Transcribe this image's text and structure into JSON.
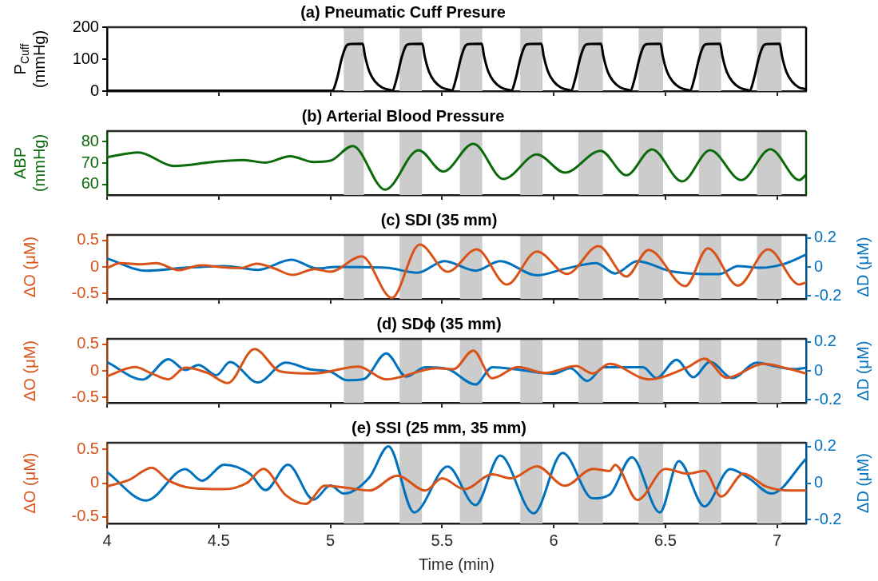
{
  "chart_data": [
    {
      "type": "line",
      "title": "(a) Pneumatic Cuff Presure",
      "ylabel": "P$_{Cuff}$ (mmHg)",
      "xlim": [
        4,
        7.13
      ],
      "xticks": [
        4,
        4.5,
        5,
        5.5,
        6,
        6.5,
        7
      ],
      "ylim": [
        0,
        200
      ],
      "yticks": [
        0,
        100,
        200
      ],
      "grid": false,
      "legend": false,
      "marker": "none",
      "tick_labels": "y",
      "bands": [
        {
          "axis": "x",
          "from": 5.06,
          "to": 5.15,
          "color": "#cccccc"
        },
        {
          "axis": "x",
          "from": 5.31,
          "to": 5.41,
          "color": "#cccccc"
        },
        {
          "axis": "x",
          "from": 5.58,
          "to": 5.68,
          "color": "#cccccc"
        },
        {
          "axis": "x",
          "from": 5.85,
          "to": 5.95,
          "color": "#cccccc"
        },
        {
          "axis": "x",
          "from": 6.11,
          "to": 6.22,
          "color": "#cccccc"
        },
        {
          "axis": "x",
          "from": 6.38,
          "to": 6.49,
          "color": "#cccccc"
        },
        {
          "axis": "x",
          "from": 6.65,
          "to": 6.75,
          "color": "#cccccc"
        },
        {
          "axis": "x",
          "from": 6.91,
          "to": 7.02,
          "color": "#cccccc"
        }
      ],
      "series": [
        {
          "color": "#000000",
          "x": [
            4,
            5.0,
            5.01,
            5.03,
            5.05,
            5.07,
            5.085,
            5.145,
            5.155,
            5.175,
            5.2,
            5.23,
            5.27,
            5.277,
            5.297,
            5.317,
            5.337,
            5.352,
            5.412,
            5.422,
            5.442,
            5.467,
            5.497,
            5.537,
            5.543,
            5.563,
            5.583,
            5.603,
            5.618,
            5.678,
            5.688,
            5.708,
            5.733,
            5.763,
            5.803,
            5.81,
            5.83,
            5.85,
            5.87,
            5.885,
            5.945,
            5.955,
            5.975,
            6.0,
            6.03,
            6.07,
            6.077,
            6.097,
            6.117,
            6.137,
            6.152,
            6.212,
            6.222,
            6.242,
            6.267,
            6.297,
            6.337,
            6.343,
            6.363,
            6.383,
            6.403,
            6.418,
            6.478,
            6.488,
            6.508,
            6.533,
            6.563,
            6.603,
            6.61,
            6.63,
            6.65,
            6.67,
            6.685,
            6.745,
            6.755,
            6.775,
            6.8,
            6.83,
            6.87,
            6.877,
            6.897,
            6.917,
            6.937,
            6.952,
            7.012,
            7.022,
            7.042,
            7.067,
            7.097,
            7.13
          ],
          "values": [
            1,
            1,
            2,
            40,
            100,
            140,
            147,
            148,
            110,
            60,
            30,
            12,
            3,
            2,
            40,
            100,
            140,
            147,
            148,
            110,
            60,
            30,
            12,
            3,
            2,
            40,
            100,
            140,
            147,
            148,
            110,
            60,
            30,
            12,
            3,
            2,
            40,
            100,
            140,
            147,
            148,
            110,
            60,
            30,
            12,
            3,
            2,
            40,
            100,
            140,
            147,
            148,
            110,
            60,
            30,
            12,
            3,
            2,
            40,
            100,
            140,
            147,
            148,
            110,
            60,
            30,
            12,
            3,
            2,
            40,
            100,
            140,
            147,
            148,
            110,
            60,
            30,
            12,
            3,
            2,
            40,
            100,
            140,
            147,
            148,
            110,
            60,
            30,
            12,
            6
          ]
        }
      ]
    },
    {
      "type": "line",
      "title": "(b) Arterial Blood Pressure",
      "ylabel": "ABP (mmHg)",
      "xlim": [
        4,
        7.13
      ],
      "xticks": [
        4,
        4.5,
        5,
        5.5,
        6,
        6.5,
        7
      ],
      "ylim": [
        55,
        85
      ],
      "yticks": [
        60,
        70,
        80
      ],
      "grid": false,
      "legend": false,
      "marker": "none",
      "tick_labels": "y",
      "bands": [
        {
          "axis": "x",
          "from": 5.06,
          "to": 5.15,
          "color": "#cccccc"
        },
        {
          "axis": "x",
          "from": 5.31,
          "to": 5.41,
          "color": "#cccccc"
        },
        {
          "axis": "x",
          "from": 5.58,
          "to": 5.68,
          "color": "#cccccc"
        },
        {
          "axis": "x",
          "from": 5.85,
          "to": 5.95,
          "color": "#cccccc"
        },
        {
          "axis": "x",
          "from": 6.11,
          "to": 6.22,
          "color": "#cccccc"
        },
        {
          "axis": "x",
          "from": 6.38,
          "to": 6.49,
          "color": "#cccccc"
        },
        {
          "axis": "x",
          "from": 6.65,
          "to": 6.75,
          "color": "#cccccc"
        },
        {
          "axis": "x",
          "from": 6.91,
          "to": 7.02,
          "color": "#cccccc"
        }
      ],
      "series": [
        {
          "color": "#0b6b0b",
          "x": [
            4,
            4.14,
            4.3,
            4.475,
            4.61,
            4.71,
            4.82,
            4.925,
            5.0,
            5.1,
            5.245,
            5.395,
            5.505,
            5.64,
            5.775,
            5.925,
            6.05,
            6.21,
            6.325,
            6.44,
            6.575,
            6.7,
            6.84,
            6.97,
            7.1,
            7.13
          ],
          "values": [
            72.7,
            75,
            68.6,
            70.5,
            71.4,
            70.2,
            73.2,
            70.5,
            71.1,
            78,
            57.5,
            76,
            66,
            79,
            62.5,
            74,
            65.5,
            75.7,
            64.3,
            76.4,
            61.4,
            76,
            62,
            76.5,
            62,
            64.5
          ]
        }
      ]
    },
    {
      "type": "line",
      "title": "(c) SDI (35 mm)",
      "ylabel": "ΔO (μM)",
      "y2label": "ΔD (μM)",
      "xlim": [
        4,
        7.13
      ],
      "xticks": [
        4,
        4.5,
        5,
        5.5,
        6,
        6.5,
        7
      ],
      "ylim": [
        -0.6,
        0.6
      ],
      "yticks": [
        -0.5,
        0,
        0.5
      ],
      "y2lim": [
        -0.22,
        0.22
      ],
      "y2ticks": [
        -0.2,
        0,
        0.2
      ],
      "grid": false,
      "legend": false,
      "marker": "none",
      "tick_labels": "y",
      "bands": [
        {
          "axis": "x",
          "from": 5.06,
          "to": 5.15,
          "color": "#cccccc"
        },
        {
          "axis": "x",
          "from": 5.31,
          "to": 5.41,
          "color": "#cccccc"
        },
        {
          "axis": "x",
          "from": 5.58,
          "to": 5.68,
          "color": "#cccccc"
        },
        {
          "axis": "x",
          "from": 5.85,
          "to": 5.95,
          "color": "#cccccc"
        },
        {
          "axis": "x",
          "from": 6.11,
          "to": 6.22,
          "color": "#cccccc"
        },
        {
          "axis": "x",
          "from": 6.38,
          "to": 6.49,
          "color": "#cccccc"
        },
        {
          "axis": "x",
          "from": 6.65,
          "to": 6.75,
          "color": "#cccccc"
        },
        {
          "axis": "x",
          "from": 6.91,
          "to": 7.02,
          "color": "#cccccc"
        }
      ],
      "series": [
        {
          "color": "#d95319",
          "x": [
            4,
            4.06,
            4.15,
            4.22,
            4.32,
            4.42,
            4.5,
            4.6,
            4.67,
            4.75,
            4.83,
            4.93,
            5.0,
            5.14,
            5.275,
            5.4,
            5.525,
            5.655,
            5.79,
            5.925,
            6.06,
            6.2,
            6.325,
            6.425,
            6.59,
            6.69,
            6.825,
            6.96,
            7.1,
            7.13
          ],
          "values": [
            -0.02,
            0.07,
            0.05,
            0.07,
            -0.06,
            0.03,
            0,
            -0.02,
            0.06,
            -0.03,
            -0.15,
            -0.04,
            -0.09,
            0.2,
            -0.58,
            0.42,
            -0.09,
            0.33,
            -0.33,
            0.29,
            -0.13,
            0.39,
            -0.18,
            0.32,
            -0.36,
            0.35,
            -0.35,
            0.33,
            -0.33,
            -0.29
          ]
        },
        {
          "color": "#0072bd",
          "axis": "y2",
          "x": [
            4,
            4.175,
            4.35,
            4.525,
            4.675,
            4.825,
            4.94,
            5.025,
            5.25,
            5.39,
            5.51,
            5.65,
            5.76,
            5.925,
            6.05,
            6.19,
            6.275,
            6.375,
            6.525,
            6.74,
            6.825,
            6.925,
            7.03,
            7.13
          ],
          "values": [
            0.058,
            -0.026,
            -0.006,
            0.006,
            -0.02,
            0.05,
            -0.01,
            0,
            -0.006,
            -0.04,
            0.04,
            -0.026,
            0.04,
            -0.058,
            -0.013,
            0.026,
            -0.045,
            0.04,
            -0.03,
            -0.05,
            0.006,
            -0.006,
            0.02,
            0.084
          ]
        }
      ]
    },
    {
      "type": "line",
      "title": "(d) SDϕ (35 mm)",
      "ylabel": "ΔO (μM)",
      "y2label": "ΔD (μM)",
      "xlim": [
        4,
        7.13
      ],
      "xticks": [
        4,
        4.5,
        5,
        5.5,
        6,
        6.5,
        7
      ],
      "ylim": [
        -0.6,
        0.6
      ],
      "yticks": [
        -0.5,
        0,
        0.5
      ],
      "y2lim": [
        -0.22,
        0.22
      ],
      "y2ticks": [
        -0.2,
        0,
        0.2
      ],
      "grid": false,
      "legend": false,
      "marker": "none",
      "tick_labels": "y",
      "bands": [
        {
          "axis": "x",
          "from": 5.06,
          "to": 5.15,
          "color": "#cccccc"
        },
        {
          "axis": "x",
          "from": 5.31,
          "to": 5.41,
          "color": "#cccccc"
        },
        {
          "axis": "x",
          "from": 5.58,
          "to": 5.68,
          "color": "#cccccc"
        },
        {
          "axis": "x",
          "from": 5.85,
          "to": 5.95,
          "color": "#cccccc"
        },
        {
          "axis": "x",
          "from": 6.11,
          "to": 6.22,
          "color": "#cccccc"
        },
        {
          "axis": "x",
          "from": 6.38,
          "to": 6.49,
          "color": "#cccccc"
        },
        {
          "axis": "x",
          "from": 6.65,
          "to": 6.75,
          "color": "#cccccc"
        },
        {
          "axis": "x",
          "from": 6.91,
          "to": 7.02,
          "color": "#cccccc"
        }
      ],
      "series": [
        {
          "color": "#d95319",
          "x": [
            4,
            4.125,
            4.2,
            4.275,
            4.35,
            4.45,
            4.54,
            4.66,
            4.775,
            4.925,
            5.125,
            5.25,
            5.475,
            5.55,
            5.64,
            5.725,
            5.84,
            5.96,
            6.1,
            6.175,
            6.25,
            6.425,
            6.6,
            6.675,
            6.775,
            6.94,
            7.05,
            7.13
          ],
          "values": [
            -0.1,
            0.07,
            -0.05,
            -0.16,
            0.06,
            -0.04,
            -0.23,
            0.41,
            -0.01,
            -0.05,
            0.08,
            -0.16,
            0.05,
            0.03,
            0.38,
            -0.14,
            0.07,
            -0.04,
            0.09,
            -0.05,
            0.13,
            -0.16,
            0.07,
            0.23,
            -0.13,
            0.13,
            0.04,
            -0.05
          ]
        },
        {
          "color": "#0072bd",
          "axis": "y2",
          "x": [
            4,
            4.16,
            4.275,
            4.35,
            4.41,
            4.49,
            4.55,
            4.675,
            4.8,
            4.91,
            5.0,
            5.075,
            5.15,
            5.25,
            5.34,
            5.425,
            5.525,
            5.65,
            5.725,
            5.85,
            6.0,
            6.075,
            6.15,
            6.225,
            6.4,
            6.46,
            6.55,
            6.625,
            6.7,
            6.8,
            6.91,
            6.99,
            7.075,
            7.13
          ],
          "values": [
            0.06,
            -0.06,
            0.08,
            0.006,
            0.04,
            -0.03,
            0.06,
            -0.08,
            0.056,
            0.01,
            -0.006,
            -0.065,
            -0.056,
            0.12,
            -0.04,
            0.025,
            0.012,
            -0.094,
            0.025,
            0.006,
            -0.02,
            0.018,
            -0.07,
            0.025,
            0.025,
            -0.05,
            0.075,
            -0.044,
            0.062,
            -0.05,
            0.056,
            0.031,
            0.012,
            0.02
          ]
        }
      ]
    },
    {
      "type": "line",
      "title": "(e) SSI (25 mm, 35 mm)",
      "xlabel": "Time (min)",
      "ylabel": "ΔO (μM)",
      "y2label": "ΔD (μM)",
      "xlim": [
        4,
        7.13
      ],
      "xticks": [
        4,
        4.5,
        5,
        5.5,
        6,
        6.5,
        7
      ],
      "ylim": [
        -0.6,
        0.6
      ],
      "yticks": [
        -0.5,
        0,
        0.5
      ],
      "y2lim": [
        -0.22,
        0.22
      ],
      "y2ticks": [
        -0.2,
        0,
        0.2
      ],
      "grid": false,
      "legend": false,
      "marker": "none",
      "bands": [
        {
          "axis": "x",
          "from": 5.06,
          "to": 5.15,
          "color": "#cccccc"
        },
        {
          "axis": "x",
          "from": 5.31,
          "to": 5.41,
          "color": "#cccccc"
        },
        {
          "axis": "x",
          "from": 5.58,
          "to": 5.68,
          "color": "#cccccc"
        },
        {
          "axis": "x",
          "from": 5.85,
          "to": 5.95,
          "color": "#cccccc"
        },
        {
          "axis": "x",
          "from": 6.11,
          "to": 6.22,
          "color": "#cccccc"
        },
        {
          "axis": "x",
          "from": 6.38,
          "to": 6.49,
          "color": "#cccccc"
        },
        {
          "axis": "x",
          "from": 6.65,
          "to": 6.75,
          "color": "#cccccc"
        },
        {
          "axis": "x",
          "from": 6.91,
          "to": 7.02,
          "color": "#cccccc"
        }
      ],
      "series": [
        {
          "color": "#d95319",
          "x": [
            4,
            4.1,
            4.2,
            4.275,
            4.375,
            4.525,
            4.625,
            4.7,
            4.8,
            4.89,
            4.975,
            5.075,
            5.175,
            5.3,
            5.425,
            5.5,
            5.6,
            5.725,
            5.81,
            5.925,
            6.05,
            6.175,
            6.25,
            6.275,
            6.375,
            6.5,
            6.6,
            6.675,
            6.75,
            6.85,
            6.95,
            7.05,
            7.13
          ],
          "values": [
            -0.05,
            0.05,
            0.23,
            0.04,
            -0.07,
            -0.09,
            0,
            0.21,
            -0.18,
            -0.31,
            -0.04,
            -0.07,
            -0.11,
            0.11,
            -0.11,
            0.07,
            -0.09,
            0.13,
            0.07,
            0.25,
            -0.04,
            0.21,
            0.18,
            0.27,
            -0.25,
            0.21,
            0.14,
            0.18,
            -0.2,
            0.14,
            -0.05,
            -0.11,
            -0.11
          ]
        },
        {
          "color": "#0072bd",
          "axis": "y2",
          "x": [
            4,
            4.175,
            4.35,
            4.425,
            4.525,
            4.64,
            4.71,
            4.81,
            4.925,
            5.0,
            5.06,
            5.175,
            5.26,
            5.375,
            5.525,
            5.65,
            5.76,
            5.91,
            6.04,
            6.175,
            6.25,
            6.35,
            6.475,
            6.56,
            6.675,
            6.79,
            6.875,
            6.975,
            7.13
          ],
          "values": [
            0.06,
            -0.095,
            0.076,
            0.013,
            0.1,
            0.05,
            -0.038,
            0.1,
            -0.09,
            -0.013,
            -0.057,
            0.032,
            0.2,
            -0.16,
            0.09,
            -0.12,
            0.15,
            -0.165,
            0.165,
            -0.083,
            -0.063,
            0.14,
            -0.16,
            0.12,
            -0.127,
            0.076,
            0.025,
            -0.057,
            0.133
          ]
        }
      ]
    }
  ]
}
